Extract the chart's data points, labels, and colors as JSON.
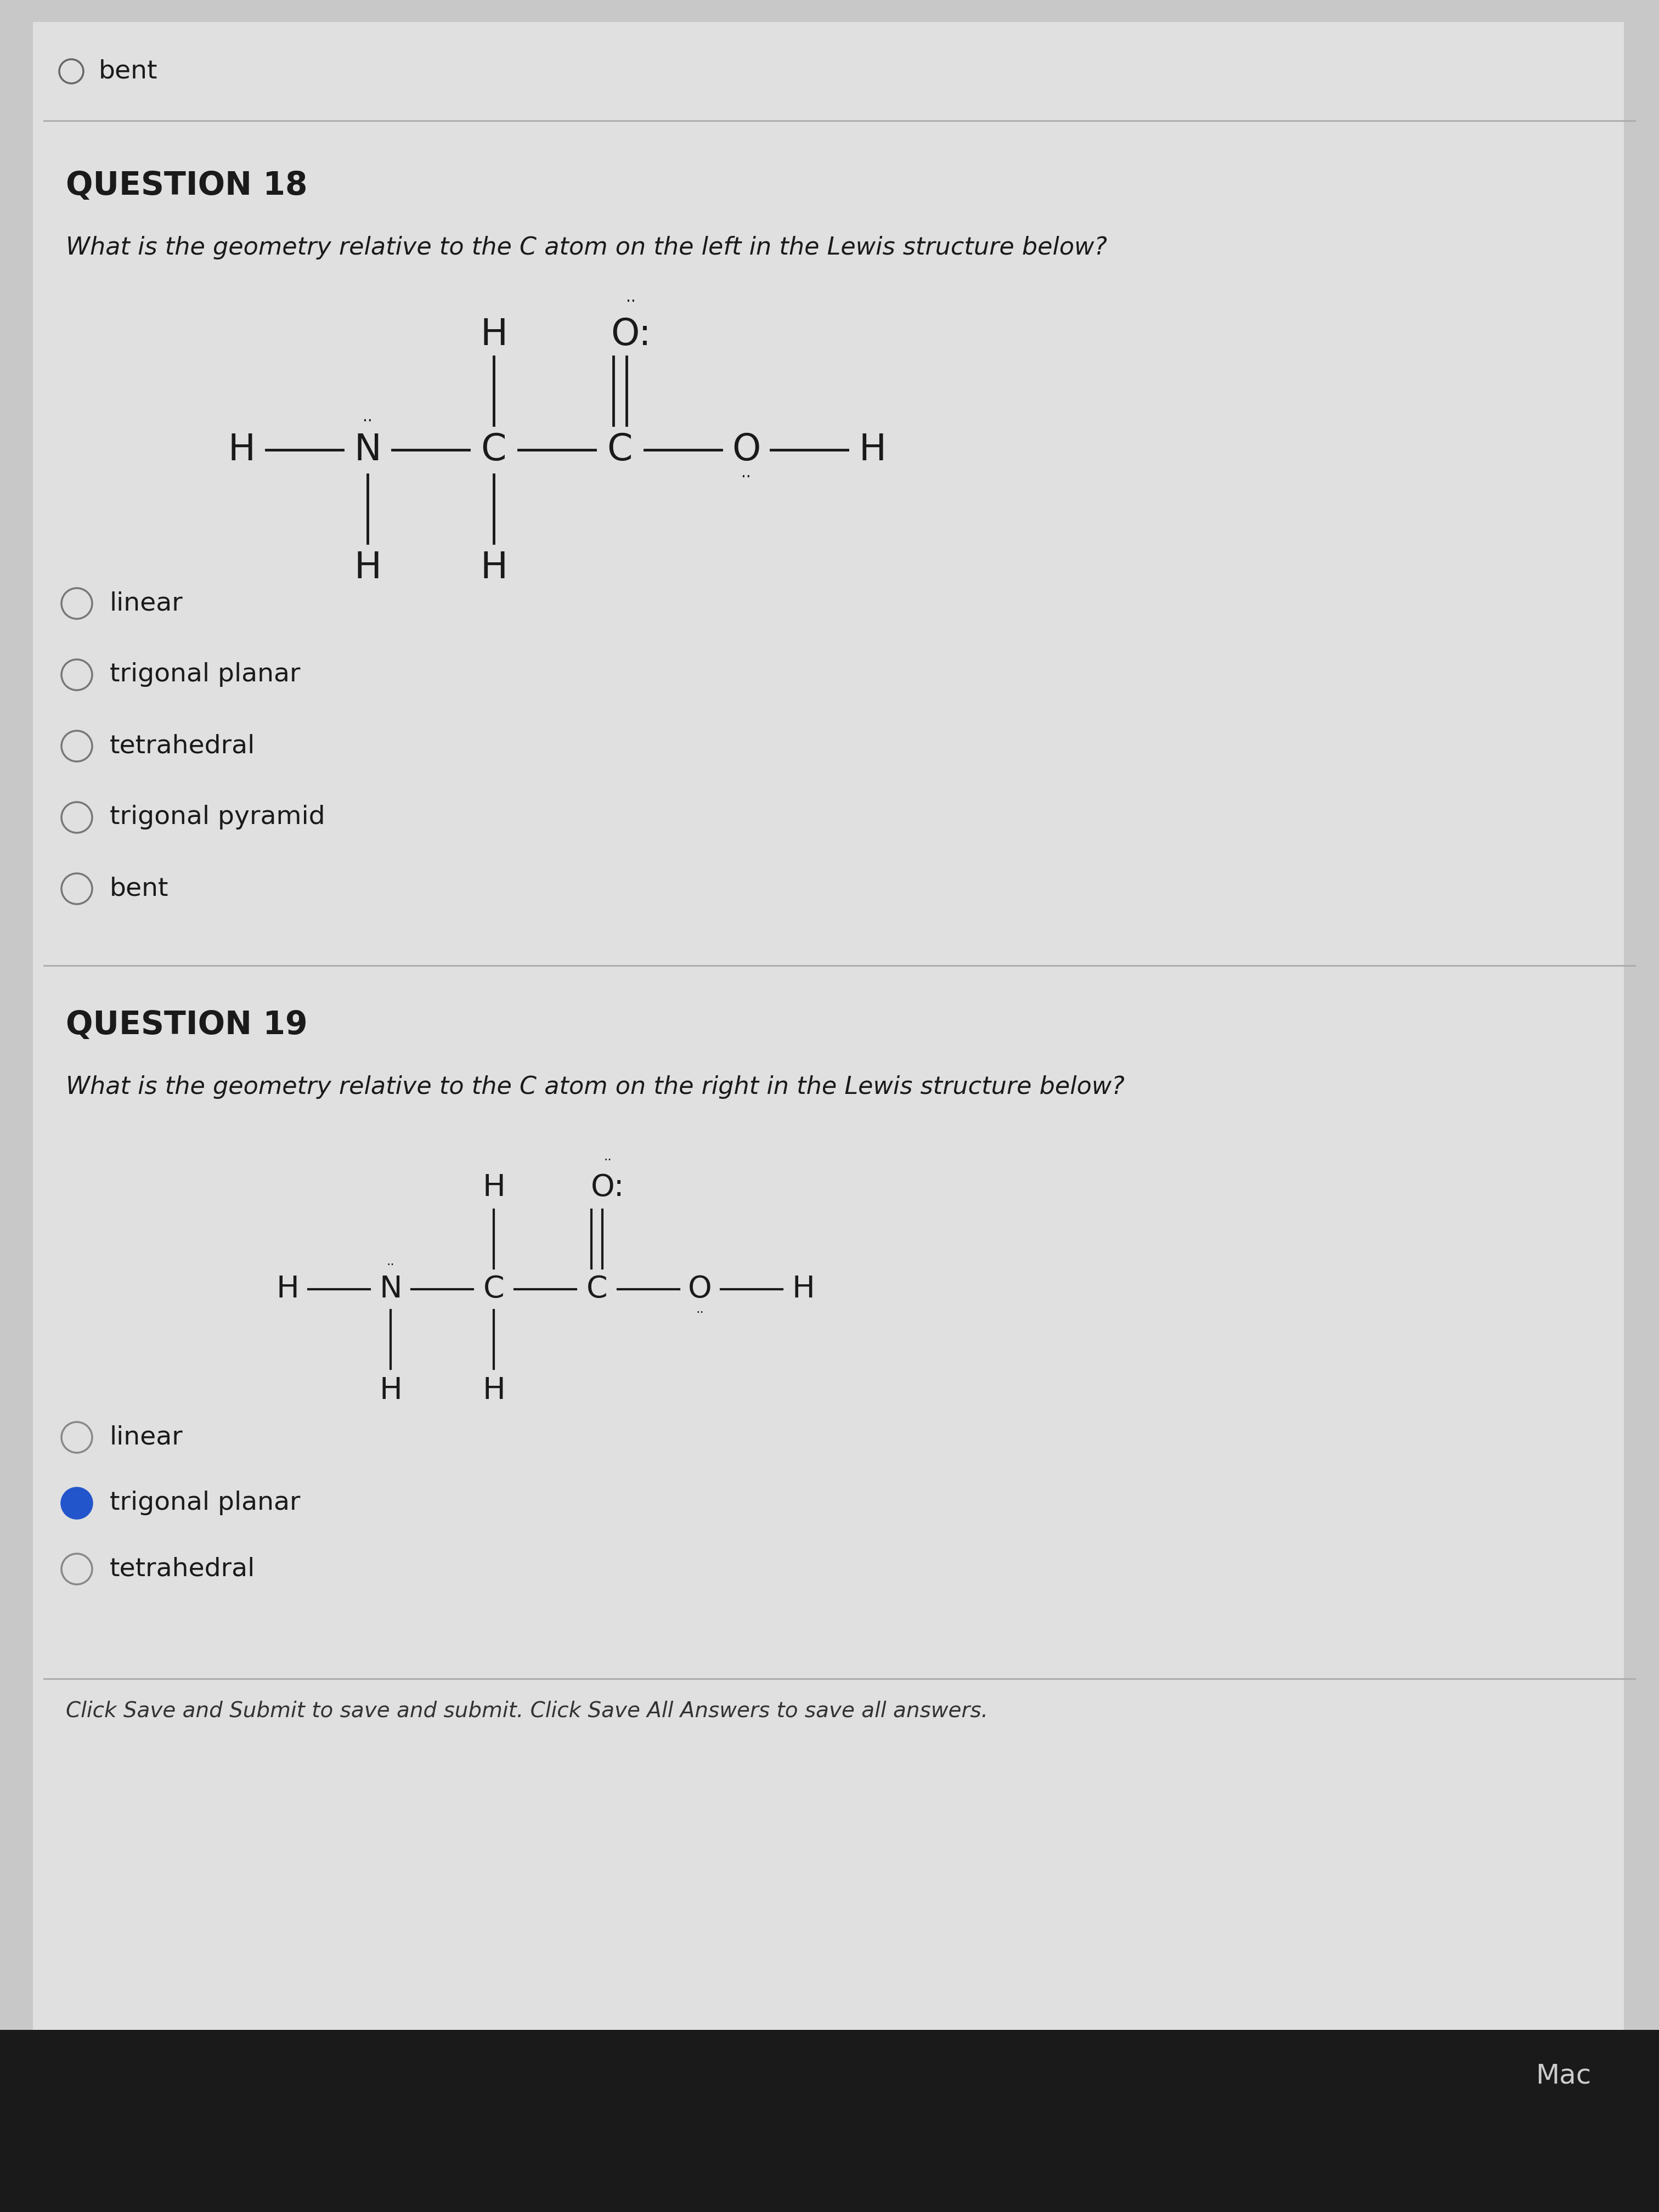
{
  "bg_color": "#c8c8c8",
  "panel_color": "#e0e0e0",
  "text_color": "#1a1a1a",
  "line_color": "#1a1a1a",
  "title_q18": "QUESTION 18",
  "q18_text": "What is the geometry relative to the C atom on the left in the Lewis structure below?",
  "q18_options": [
    "linear",
    "trigonal planar",
    "tetrahedral",
    "trigonal pyramid",
    "bent"
  ],
  "q18_selected": -1,
  "title_q19": "QUESTION 19",
  "q19_text": "What is the geometry relative to the C atom on the right in the Lewis structure below?",
  "q19_options": [
    "linear",
    "trigonal planar",
    "tetrahedral"
  ],
  "q19_selected": 1,
  "prev_option": "bent",
  "footer_text": "Click Save and Submit to save and submit. Click Save All Answers to save all answers.",
  "footer_right": "Mac"
}
